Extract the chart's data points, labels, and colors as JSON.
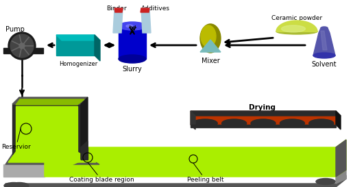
{
  "bg_color": "#ffffff",
  "pump_label": "Pump",
  "homogenizer_label": "Homogenizer",
  "slurry_label": "Slurry",
  "binder_label": "Binder",
  "additives_label": "Additives",
  "mixer_label": "Mixer",
  "ceramic_powder_label": "Ceramic powder",
  "solvent_label": "Solvent",
  "drying_label": "Drying",
  "reservior_label": "Reservior",
  "coating_blade_label": "Coating blade region",
  "peeling_belt_label": "Peeling belt",
  "teal_color": "#009999",
  "dark_teal": "#006666",
  "teal_top": "#00bbbb",
  "blue_color": "#0000cc",
  "dark_blue": "#000099",
  "blue_top": "#4444ee",
  "lime_green": "#aaee00",
  "lime_dark": "#88bb00",
  "lime_side": "#99cc00",
  "dark_gray": "#2a2a2a",
  "mid_gray": "#555555",
  "light_gray": "#888888",
  "pale_gray": "#aaaaaa",
  "olive": "#888800",
  "olive_light": "#bbbb00",
  "light_blue_gray": "#88aabb",
  "light_blue_gray2": "#aaccdd",
  "purple_blue": "#5555aa",
  "purple_light": "#7777bb",
  "light_teal_tri": "#77bbbb",
  "orange_brown": "#bb3300",
  "orange_light": "#cc5500",
  "wheel_dark": "#1a1a1a",
  "wheel_mid": "#444444",
  "wheel_hub": "#666666"
}
